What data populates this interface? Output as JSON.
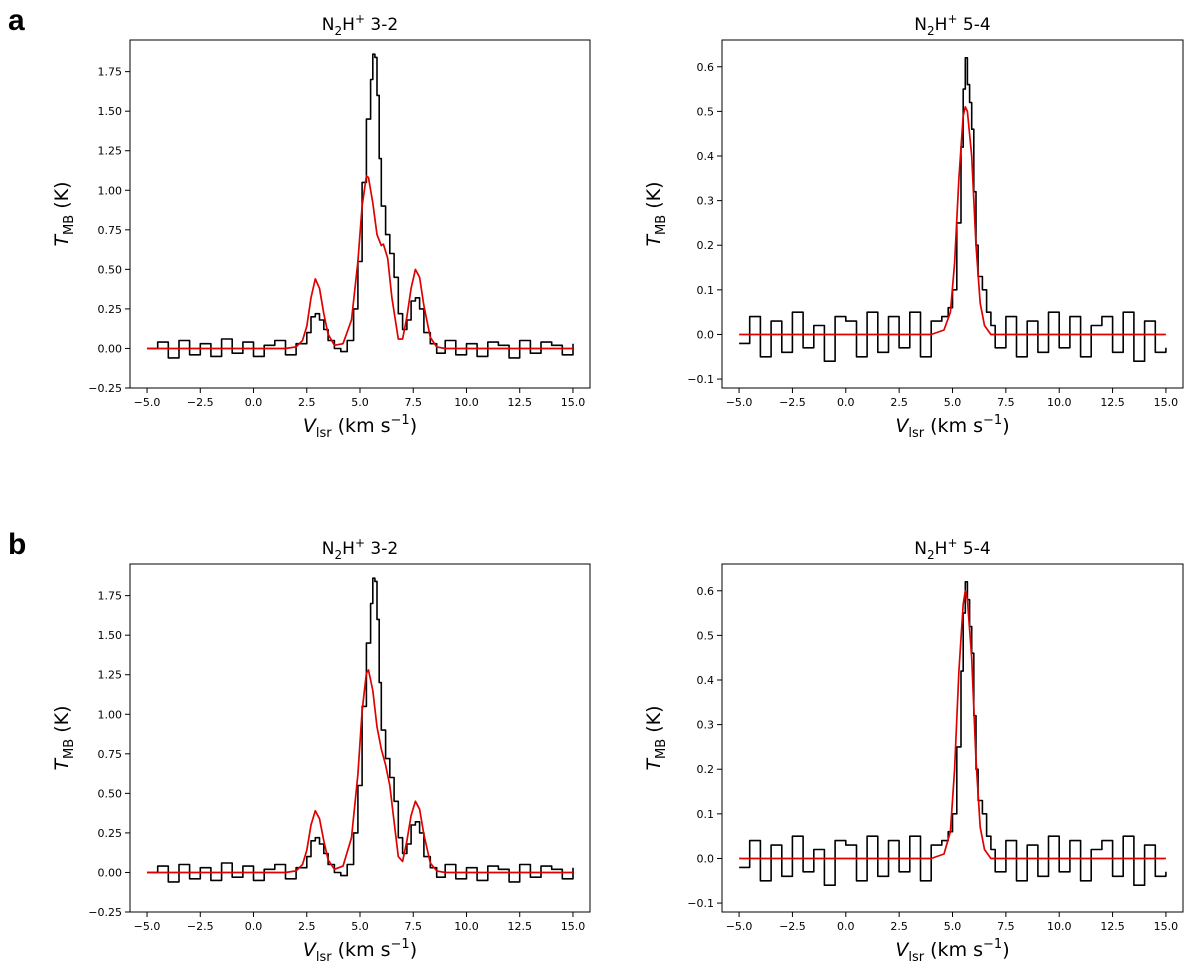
{
  "panels": [
    {
      "letter": "a"
    },
    {
      "letter": "b"
    }
  ],
  "chart_data": [
    {
      "type": "line",
      "panel": "a",
      "title_main": "N",
      "title_sub": "2",
      "title_mid": "H",
      "title_sup": "+",
      "title_tail": " 3-2",
      "ylabel": "T",
      "ylabel_sub": "MB",
      "ylabel_unit": "(K)",
      "xlabel": "V",
      "xlabel_sub": "lsr",
      "xlabel_unit": "(km s",
      "xlabel_sup": "−1",
      "xlabel_close": ")",
      "xlim": [
        -5.8,
        15.8
      ],
      "ylim": [
        -0.25,
        1.95
      ],
      "xticks": [
        -5.0,
        -2.5,
        0.0,
        2.5,
        5.0,
        7.5,
        10.0,
        12.5,
        15.0
      ],
      "yticks": [
        -0.25,
        0.0,
        0.25,
        0.5,
        0.75,
        1.0,
        1.25,
        1.5,
        1.75
      ],
      "xtick_labels": [
        "−5.0",
        "−2.5",
        "0.0",
        "2.5",
        "5.0",
        "7.5",
        "10.0",
        "12.5",
        "15.0"
      ],
      "ytick_labels": [
        "−0.25",
        "0.00",
        "0.25",
        "0.50",
        "0.75",
        "1.00",
        "1.25",
        "1.50",
        "1.75"
      ],
      "series": [
        {
          "color": "#000000",
          "style": "steps",
          "x": [
            -5.0,
            -4.5,
            -4.0,
            -3.5,
            -3.0,
            -2.5,
            -2.0,
            -1.5,
            -1.0,
            -0.5,
            0.0,
            0.5,
            1.0,
            1.5,
            2.0,
            2.5,
            2.7,
            2.9,
            3.1,
            3.3,
            3.5,
            3.8,
            4.1,
            4.4,
            4.7,
            4.9,
            5.1,
            5.3,
            5.5,
            5.6,
            5.7,
            5.8,
            5.9,
            6.0,
            6.2,
            6.4,
            6.6,
            6.8,
            7.0,
            7.2,
            7.4,
            7.6,
            7.8,
            8.0,
            8.3,
            8.6,
            9.0,
            9.5,
            10.0,
            10.5,
            11.0,
            11.5,
            12.0,
            12.5,
            13.0,
            13.5,
            14.0,
            14.5,
            15.0
          ],
          "y": [
            0.0,
            0.04,
            -0.06,
            0.05,
            -0.04,
            0.03,
            -0.05,
            0.06,
            -0.03,
            0.04,
            -0.05,
            0.02,
            0.05,
            -0.04,
            0.03,
            0.1,
            0.2,
            0.22,
            0.18,
            0.12,
            0.05,
            0.0,
            -0.02,
            0.05,
            0.25,
            0.55,
            1.05,
            1.45,
            1.7,
            1.86,
            1.84,
            1.6,
            1.2,
            0.9,
            0.72,
            0.6,
            0.45,
            0.22,
            0.12,
            0.18,
            0.3,
            0.32,
            0.25,
            0.1,
            0.03,
            -0.03,
            0.05,
            -0.04,
            0.03,
            -0.05,
            0.04,
            0.02,
            -0.06,
            0.05,
            -0.03,
            0.04,
            0.02,
            -0.04,
            0.03
          ]
        },
        {
          "color": "#e00000",
          "style": "line",
          "x": [
            -5.0,
            1.5,
            2.0,
            2.3,
            2.5,
            2.7,
            2.9,
            3.1,
            3.3,
            3.5,
            3.8,
            4.2,
            4.6,
            4.9,
            5.1,
            5.3,
            5.4,
            5.6,
            5.8,
            6.0,
            6.1,
            6.3,
            6.5,
            6.8,
            7.0,
            7.2,
            7.4,
            7.6,
            7.8,
            8.0,
            8.3,
            8.6,
            9.0,
            10.0,
            15.0
          ],
          "y": [
            0.0,
            0.0,
            0.01,
            0.05,
            0.14,
            0.32,
            0.44,
            0.38,
            0.22,
            0.09,
            0.02,
            0.03,
            0.18,
            0.55,
            0.9,
            1.09,
            1.08,
            0.92,
            0.72,
            0.65,
            0.66,
            0.57,
            0.32,
            0.06,
            0.06,
            0.2,
            0.38,
            0.5,
            0.45,
            0.27,
            0.07,
            0.01,
            0.0,
            0.0,
            0.0
          ]
        }
      ]
    },
    {
      "type": "line",
      "panel": "a",
      "title_main": "N",
      "title_sub": "2",
      "title_mid": "H",
      "title_sup": "+",
      "title_tail": " 5-4",
      "ylabel": "T",
      "ylabel_sub": "MB",
      "ylabel_unit": "(K)",
      "xlabel": "V",
      "xlabel_sub": "lsr",
      "xlabel_unit": "(km s",
      "xlabel_sup": "−1",
      "xlabel_close": ")",
      "xlim": [
        -5.8,
        15.8
      ],
      "ylim": [
        -0.12,
        0.66
      ],
      "xticks": [
        -5.0,
        -2.5,
        0.0,
        2.5,
        5.0,
        7.5,
        10.0,
        12.5,
        15.0
      ],
      "yticks": [
        -0.1,
        0.0,
        0.1,
        0.2,
        0.3,
        0.4,
        0.5,
        0.6
      ],
      "xtick_labels": [
        "−5.0",
        "−2.5",
        "0.0",
        "2.5",
        "5.0",
        "7.5",
        "10.0",
        "12.5",
        "15.0"
      ],
      "ytick_labels": [
        "−0.1",
        "0.0",
        "0.1",
        "0.2",
        "0.3",
        "0.4",
        "0.5",
        "0.6"
      ],
      "series": [
        {
          "color": "#000000",
          "style": "steps",
          "x": [
            -5.0,
            -4.5,
            -4.0,
            -3.5,
            -3.0,
            -2.5,
            -2.0,
            -1.5,
            -1.0,
            -0.5,
            0.0,
            0.5,
            1.0,
            1.5,
            2.0,
            2.5,
            3.0,
            3.5,
            4.0,
            4.5,
            4.8,
            5.0,
            5.2,
            5.4,
            5.5,
            5.6,
            5.7,
            5.8,
            5.9,
            6.0,
            6.1,
            6.2,
            6.4,
            6.6,
            6.8,
            7.0,
            7.5,
            8.0,
            8.5,
            9.0,
            9.5,
            10.0,
            10.5,
            11.0,
            11.5,
            12.0,
            12.5,
            13.0,
            13.5,
            14.0,
            14.5,
            15.0
          ],
          "y": [
            -0.02,
            0.04,
            -0.05,
            0.03,
            -0.04,
            0.05,
            -0.03,
            0.02,
            -0.06,
            0.04,
            0.03,
            -0.05,
            0.05,
            -0.04,
            0.04,
            -0.03,
            0.05,
            -0.05,
            0.03,
            0.04,
            0.06,
            0.1,
            0.25,
            0.42,
            0.55,
            0.62,
            0.56,
            0.52,
            0.46,
            0.32,
            0.2,
            0.13,
            0.1,
            0.05,
            0.02,
            -0.03,
            0.04,
            -0.05,
            0.03,
            -0.04,
            0.05,
            -0.03,
            0.04,
            -0.05,
            0.02,
            0.04,
            -0.04,
            0.05,
            -0.06,
            0.03,
            -0.04,
            -0.03
          ]
        },
        {
          "color": "#e00000",
          "style": "line",
          "x": [
            -5.0,
            4.0,
            4.6,
            4.9,
            5.1,
            5.3,
            5.5,
            5.6,
            5.7,
            5.9,
            6.1,
            6.3,
            6.5,
            6.8,
            7.2,
            15.0
          ],
          "y": [
            0.0,
            0.0,
            0.01,
            0.05,
            0.16,
            0.35,
            0.49,
            0.51,
            0.5,
            0.4,
            0.2,
            0.07,
            0.02,
            0.0,
            0.0,
            0.0
          ]
        }
      ]
    },
    {
      "type": "line",
      "panel": "b",
      "title_main": "N",
      "title_sub": "2",
      "title_mid": "H",
      "title_sup": "+",
      "title_tail": " 3-2",
      "ylabel": "T",
      "ylabel_sub": "MB",
      "ylabel_unit": "(K)",
      "xlabel": "V",
      "xlabel_sub": "lsr",
      "xlabel_unit": "(km s",
      "xlabel_sup": "−1",
      "xlabel_close": ")",
      "xlim": [
        -5.8,
        15.8
      ],
      "ylim": [
        -0.25,
        1.95
      ],
      "xticks": [
        -5.0,
        -2.5,
        0.0,
        2.5,
        5.0,
        7.5,
        10.0,
        12.5,
        15.0
      ],
      "yticks": [
        -0.25,
        0.0,
        0.25,
        0.5,
        0.75,
        1.0,
        1.25,
        1.5,
        1.75
      ],
      "xtick_labels": [
        "−5.0",
        "−2.5",
        "0.0",
        "2.5",
        "5.0",
        "7.5",
        "10.0",
        "12.5",
        "15.0"
      ],
      "ytick_labels": [
        "−0.25",
        "0.00",
        "0.25",
        "0.50",
        "0.75",
        "1.00",
        "1.25",
        "1.50",
        "1.75"
      ],
      "series": [
        {
          "color": "#000000",
          "style": "steps",
          "x": [
            -5.0,
            -4.5,
            -4.0,
            -3.5,
            -3.0,
            -2.5,
            -2.0,
            -1.5,
            -1.0,
            -0.5,
            0.0,
            0.5,
            1.0,
            1.5,
            2.0,
            2.5,
            2.7,
            2.9,
            3.1,
            3.3,
            3.5,
            3.8,
            4.1,
            4.4,
            4.7,
            4.9,
            5.1,
            5.3,
            5.5,
            5.6,
            5.7,
            5.8,
            5.9,
            6.0,
            6.2,
            6.4,
            6.6,
            6.8,
            7.0,
            7.2,
            7.4,
            7.6,
            7.8,
            8.0,
            8.3,
            8.6,
            9.0,
            9.5,
            10.0,
            10.5,
            11.0,
            11.5,
            12.0,
            12.5,
            13.0,
            13.5,
            14.0,
            14.5,
            15.0
          ],
          "y": [
            0.0,
            0.04,
            -0.06,
            0.05,
            -0.04,
            0.03,
            -0.05,
            0.06,
            -0.03,
            0.04,
            -0.05,
            0.02,
            0.05,
            -0.04,
            0.03,
            0.1,
            0.2,
            0.22,
            0.18,
            0.12,
            0.05,
            0.0,
            -0.02,
            0.05,
            0.25,
            0.55,
            1.05,
            1.45,
            1.7,
            1.86,
            1.84,
            1.6,
            1.2,
            0.9,
            0.72,
            0.6,
            0.45,
            0.22,
            0.12,
            0.18,
            0.3,
            0.32,
            0.25,
            0.1,
            0.03,
            -0.03,
            0.05,
            -0.04,
            0.03,
            -0.05,
            0.04,
            0.02,
            -0.06,
            0.05,
            -0.03,
            0.04,
            0.02,
            -0.04,
            0.03
          ]
        },
        {
          "color": "#e00000",
          "style": "line",
          "x": [
            -5.0,
            1.5,
            2.0,
            2.3,
            2.5,
            2.7,
            2.9,
            3.1,
            3.3,
            3.5,
            3.8,
            4.2,
            4.6,
            4.9,
            5.1,
            5.3,
            5.4,
            5.6,
            5.8,
            6.0,
            6.2,
            6.4,
            6.6,
            6.8,
            7.0,
            7.2,
            7.4,
            7.6,
            7.8,
            8.0,
            8.3,
            8.6,
            9.0,
            10.0,
            15.0
          ],
          "y": [
            0.0,
            0.0,
            0.01,
            0.05,
            0.14,
            0.3,
            0.39,
            0.34,
            0.2,
            0.08,
            0.02,
            0.04,
            0.22,
            0.62,
            1.02,
            1.26,
            1.28,
            1.15,
            0.92,
            0.78,
            0.68,
            0.55,
            0.32,
            0.1,
            0.07,
            0.2,
            0.36,
            0.45,
            0.4,
            0.24,
            0.06,
            0.01,
            0.0,
            0.0,
            0.0
          ]
        }
      ]
    },
    {
      "type": "line",
      "panel": "b",
      "title_main": "N",
      "title_sub": "2",
      "title_mid": "H",
      "title_sup": "+",
      "title_tail": " 5-4",
      "ylabel": "T",
      "ylabel_sub": "MB",
      "ylabel_unit": "(K)",
      "xlabel": "V",
      "xlabel_sub": "lsr",
      "xlabel_unit": "(km s",
      "xlabel_sup": "−1",
      "xlabel_close": ")",
      "xlim": [
        -5.8,
        15.8
      ],
      "ylim": [
        -0.12,
        0.66
      ],
      "xticks": [
        -5.0,
        -2.5,
        0.0,
        2.5,
        5.0,
        7.5,
        10.0,
        12.5,
        15.0
      ],
      "yticks": [
        -0.1,
        0.0,
        0.1,
        0.2,
        0.3,
        0.4,
        0.5,
        0.6
      ],
      "xtick_labels": [
        "−5.0",
        "−2.5",
        "0.0",
        "2.5",
        "5.0",
        "7.5",
        "10.0",
        "12.5",
        "15.0"
      ],
      "ytick_labels": [
        "−0.1",
        "0.0",
        "0.1",
        "0.2",
        "0.3",
        "0.4",
        "0.5",
        "0.6"
      ],
      "series": [
        {
          "color": "#000000",
          "style": "steps",
          "x": [
            -5.0,
            -4.5,
            -4.0,
            -3.5,
            -3.0,
            -2.5,
            -2.0,
            -1.5,
            -1.0,
            -0.5,
            0.0,
            0.5,
            1.0,
            1.5,
            2.0,
            2.5,
            3.0,
            3.5,
            4.0,
            4.5,
            4.8,
            5.0,
            5.2,
            5.4,
            5.5,
            5.6,
            5.7,
            5.8,
            5.9,
            6.0,
            6.1,
            6.2,
            6.4,
            6.6,
            6.8,
            7.0,
            7.5,
            8.0,
            8.5,
            9.0,
            9.5,
            10.0,
            10.5,
            11.0,
            11.5,
            12.0,
            12.5,
            13.0,
            13.5,
            14.0,
            14.5,
            15.0
          ],
          "y": [
            -0.02,
            0.04,
            -0.05,
            0.03,
            -0.04,
            0.05,
            -0.03,
            0.02,
            -0.06,
            0.04,
            0.03,
            -0.05,
            0.05,
            -0.04,
            0.04,
            -0.03,
            0.05,
            -0.05,
            0.03,
            0.04,
            0.06,
            0.1,
            0.25,
            0.42,
            0.55,
            0.62,
            0.58,
            0.52,
            0.46,
            0.32,
            0.2,
            0.13,
            0.1,
            0.05,
            0.02,
            -0.03,
            0.04,
            -0.05,
            0.03,
            -0.04,
            0.05,
            -0.03,
            0.04,
            -0.05,
            0.02,
            0.04,
            -0.04,
            0.05,
            -0.06,
            0.03,
            -0.04,
            -0.03
          ]
        },
        {
          "color": "#e00000",
          "style": "line",
          "x": [
            -5.0,
            4.0,
            4.6,
            4.9,
            5.1,
            5.3,
            5.5,
            5.6,
            5.7,
            5.9,
            6.1,
            6.3,
            6.5,
            6.8,
            7.2,
            15.0
          ],
          "y": [
            0.0,
            0.0,
            0.01,
            0.06,
            0.2,
            0.42,
            0.57,
            0.6,
            0.58,
            0.45,
            0.22,
            0.07,
            0.02,
            0.0,
            0.0,
            0.0
          ]
        }
      ]
    }
  ]
}
